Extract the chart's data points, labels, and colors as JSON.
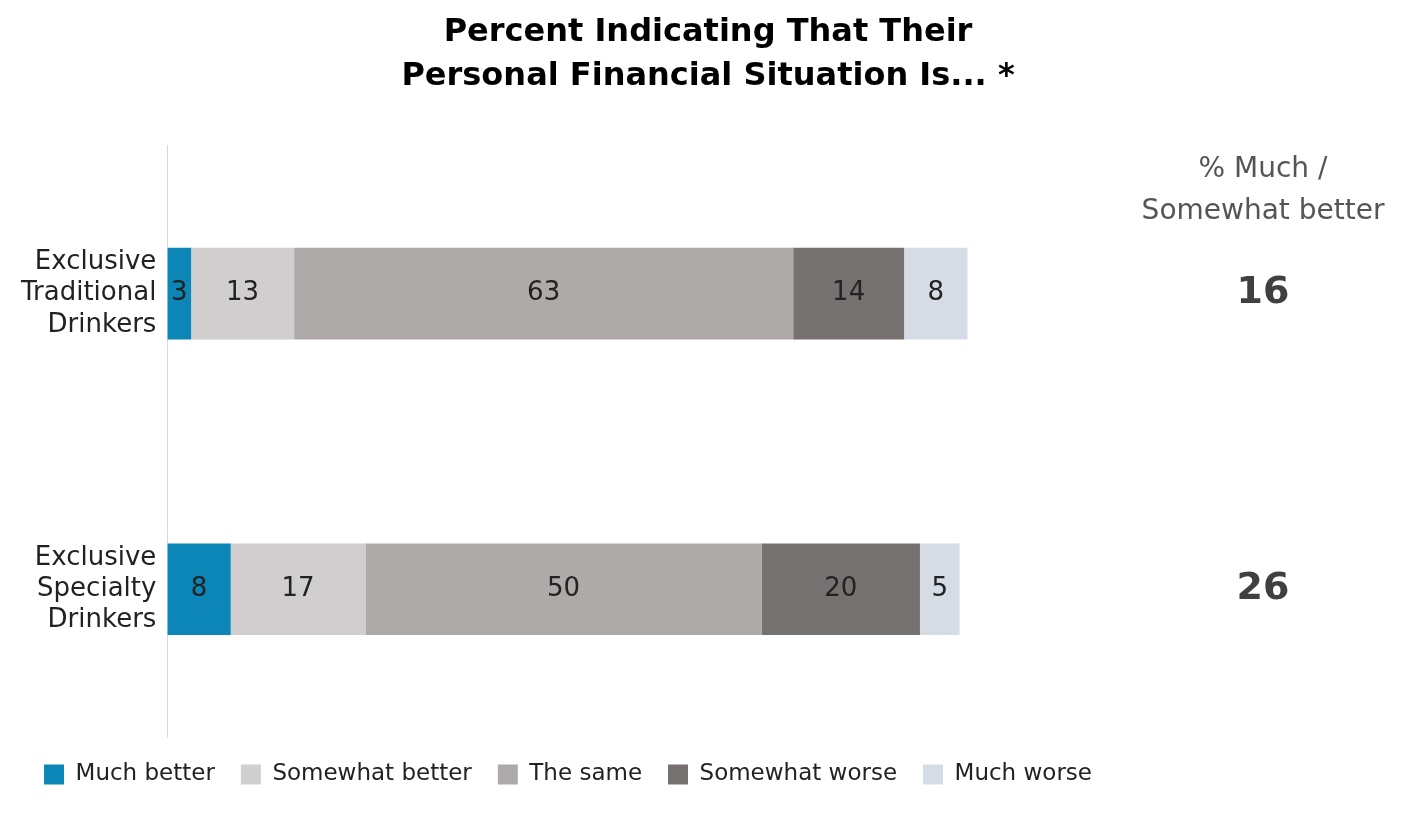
{
  "chart_data": {
    "type": "bar",
    "orientation": "horizontal",
    "stacked": true,
    "title": "Percent Indicating That Their Personal Financial Situation Is... *",
    "categories": [
      "Exclusive Traditional Drinkers",
      "Exclusive Specialty Drinkers"
    ],
    "series": [
      {
        "name": "Much better",
        "color": "#0c86b6",
        "values": [
          3,
          8
        ]
      },
      {
        "name": "Somewhat better",
        "color": "#d0cecf",
        "values": [
          13,
          17
        ]
      },
      {
        "name": "The same",
        "color": "#aeaaa9",
        "values": [
          63,
          50
        ]
      },
      {
        "name": "Somewhat worse",
        "color": "#767171",
        "values": [
          14,
          20
        ]
      },
      {
        "name": "Much worse",
        "color": "#d6dce5",
        "values": [
          8,
          5
        ]
      }
    ],
    "data_labels": true,
    "legend": "bottom",
    "grid": false,
    "annotations": [
      "% Much / Somewhat better",
      "16",
      "26"
    ]
  }
}
